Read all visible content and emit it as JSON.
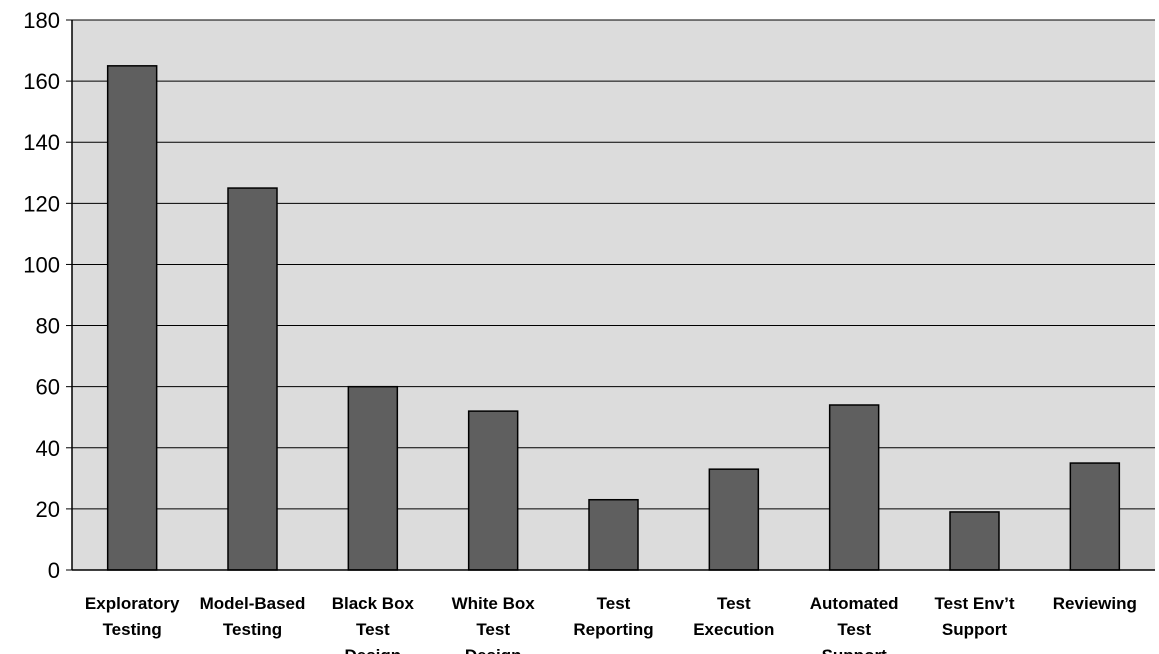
{
  "chart_data": {
    "type": "bar",
    "title": "",
    "xlabel": "",
    "ylabel": "",
    "ylim": [
      0,
      180
    ],
    "yticks": [
      0,
      20,
      40,
      60,
      80,
      100,
      120,
      140,
      160,
      180
    ],
    "grid": true,
    "categories": [
      [
        "Exploratory",
        "Testing"
      ],
      [
        "Model-Based",
        "Testing"
      ],
      [
        "Black Box",
        "Test",
        "Design"
      ],
      [
        "White Box",
        "Test",
        "Design"
      ],
      [
        "Test",
        "Reporting"
      ],
      [
        "Test",
        "Execution"
      ],
      [
        "Automated",
        "Test",
        "Support"
      ],
      [
        "Test Env’t",
        "Support"
      ],
      [
        "Reviewing"
      ]
    ],
    "values": [
      165,
      125,
      60,
      52,
      23,
      33,
      54,
      19,
      35
    ],
    "colors": {
      "plot_background": "#dcdcdc",
      "bar_fill": "#5f5f5f",
      "bar_stroke": "#000000",
      "gridline": "#000000"
    }
  }
}
